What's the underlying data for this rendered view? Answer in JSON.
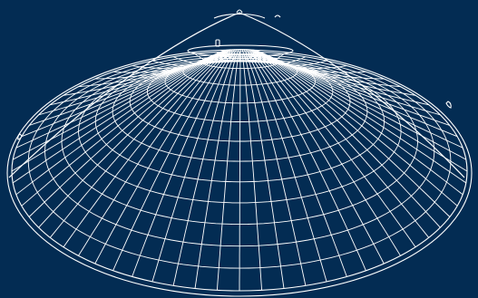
{
  "colors": {
    "background": "#032C53",
    "line": "#FFFFFF"
  },
  "illustration": {
    "icon": "conical-dome-wireframe-icon",
    "radial_rib_count": 64,
    "concentric_ring_count": 11
  }
}
